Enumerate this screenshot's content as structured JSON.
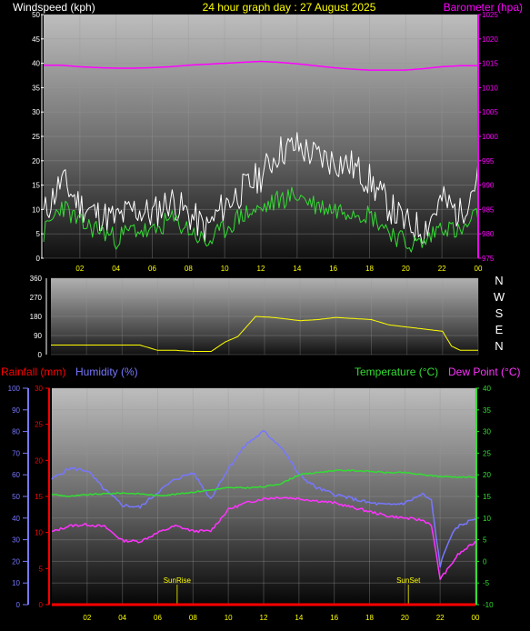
{
  "header": {
    "windspeed_label": "Windspeed (kph)",
    "title": "24 hour graph day : 27 August 2025",
    "barometer_label": "Barometer (hpa)"
  },
  "x_ticks": [
    "02",
    "04",
    "06",
    "08",
    "10",
    "12",
    "14",
    "16",
    "18",
    "20",
    "22",
    "00"
  ],
  "chart_data": [
    {
      "type": "line",
      "panel": "wind-barometer",
      "y_left": {
        "label": "Windspeed (kph)",
        "range": [
          0,
          50
        ],
        "ticks": [
          "0",
          "5",
          "10",
          "15",
          "20",
          "25",
          "30",
          "35",
          "40",
          "45",
          "50"
        ]
      },
      "y_right": {
        "label": "Barometer (hpa)",
        "range": [
          975,
          1025
        ],
        "ticks": [
          "975",
          "980",
          "985",
          "990",
          "995",
          "1000",
          "1005",
          "1010",
          "1015",
          "1020",
          "1025"
        ]
      },
      "x_range": [
        0,
        24
      ],
      "series": [
        {
          "name": "Barometer (hpa)",
          "color": "#ff00ff",
          "axis": "right",
          "x": [
            0,
            1,
            2,
            3,
            4,
            5,
            6,
            7,
            8,
            9,
            10,
            11,
            12,
            13,
            14,
            15,
            16,
            17,
            18,
            19,
            20,
            21,
            22,
            23,
            24
          ],
          "y": [
            1014.6,
            1014.6,
            1014.3,
            1014.1,
            1014.0,
            1014.0,
            1014.1,
            1014.3,
            1014.6,
            1014.8,
            1015.0,
            1015.2,
            1015.4,
            1015.2,
            1014.9,
            1014.5,
            1014.1,
            1013.8,
            1013.6,
            1013.6,
            1013.6,
            1013.9,
            1014.3,
            1014.5,
            1014.5
          ]
        },
        {
          "name": "Gust",
          "color": "#ffffff",
          "axis": "left",
          "x": [
            0,
            1,
            2,
            3,
            4,
            5,
            6,
            7,
            8,
            9,
            10,
            11,
            12,
            13,
            14,
            15,
            16,
            17,
            18,
            19,
            20,
            21,
            22,
            23,
            24
          ],
          "y": [
            9,
            16,
            11,
            9,
            8,
            10,
            9,
            12,
            9,
            6,
            11,
            14,
            17,
            22,
            23,
            21,
            20,
            19,
            16,
            11,
            7,
            6,
            12,
            9,
            17
          ]
        },
        {
          "name": "Average",
          "color": "#33dd33",
          "axis": "left",
          "x": [
            0,
            1,
            2,
            3,
            4,
            5,
            6,
            7,
            8,
            9,
            10,
            11,
            12,
            13,
            14,
            15,
            16,
            17,
            18,
            19,
            20,
            21,
            22,
            23,
            24
          ],
          "y": [
            5,
            11,
            7,
            6,
            4,
            6,
            5,
            8,
            6,
            3,
            6,
            9,
            10,
            12,
            13,
            11,
            10,
            10,
            9,
            6,
            3,
            3,
            7,
            5,
            9
          ]
        }
      ]
    },
    {
      "type": "line",
      "panel": "wind-direction",
      "y_left": {
        "range": [
          0,
          360
        ],
        "ticks": [
          "0",
          "90",
          "180",
          "270",
          "360"
        ]
      },
      "compass": [
        "N",
        "W",
        "S",
        "E",
        "N"
      ],
      "x_range": [
        0,
        24
      ],
      "series": [
        {
          "name": "Direction",
          "color": "#ffff00",
          "x": [
            0,
            2,
            3.5,
            5,
            6,
            7,
            8,
            9,
            9.8,
            10.5,
            11.5,
            12.5,
            13,
            14,
            15,
            16,
            17,
            18,
            19,
            20,
            21,
            22,
            22.5,
            23,
            24
          ],
          "y": [
            45,
            45,
            45,
            45,
            20,
            20,
            15,
            15,
            60,
            85,
            180,
            175,
            170,
            160,
            165,
            175,
            170,
            165,
            140,
            130,
            120,
            110,
            40,
            20,
            20
          ]
        }
      ]
    },
    {
      "type": "line",
      "panel": "rain-humidity-temp",
      "labels": {
        "rainfall": "Rainfall (mm)",
        "humidity": "Humidity (%)",
        "temperature": "Temperature (°C)",
        "dewpoint": "Dew Point (°C)"
      },
      "y_humidity": {
        "range": [
          0,
          100
        ],
        "ticks": [
          "0",
          "10",
          "20",
          "30",
          "40",
          "50",
          "60",
          "70",
          "80",
          "90",
          "100"
        ]
      },
      "y_rain": {
        "range": [
          0,
          30
        ],
        "ticks": [
          "0",
          "5",
          "10",
          "15",
          "20",
          "25",
          "30"
        ]
      },
      "y_temp": {
        "range": [
          -10,
          40
        ],
        "ticks": [
          "-10",
          "-5",
          "0",
          "5",
          "10",
          "15",
          "20",
          "25",
          "30",
          "35",
          "40"
        ]
      },
      "x_range": [
        0,
        24
      ],
      "annotations": [
        {
          "text": "SunRise",
          "x": 7.1
        },
        {
          "text": "SunSet",
          "x": 20.2
        }
      ],
      "series": [
        {
          "name": "Humidity (%)",
          "color": "#7777ff",
          "axis": "humidity",
          "x": [
            0,
            1,
            2,
            3,
            4,
            5,
            6,
            7,
            8,
            9,
            10,
            11,
            12,
            13,
            14,
            15,
            16,
            17,
            18,
            19,
            20,
            21,
            21.5,
            22,
            22.5,
            23,
            24
          ],
          "y": [
            58,
            63,
            62,
            53,
            46,
            45,
            52,
            58,
            61,
            49,
            63,
            74,
            80,
            73,
            60,
            54,
            51,
            49,
            47,
            46,
            47,
            51,
            48,
            18,
            30,
            36,
            40
          ]
        },
        {
          "name": "Temperature (°C)",
          "color": "#33dd33",
          "axis": "temp",
          "x": [
            0,
            1,
            2,
            3,
            4,
            5,
            6,
            7,
            8,
            9,
            10,
            11,
            12,
            13,
            14,
            15,
            16,
            17,
            18,
            19,
            20,
            21,
            22,
            23,
            24
          ],
          "y": [
            15.5,
            15.0,
            15.4,
            15.6,
            15.8,
            15.6,
            15.2,
            15.5,
            16.0,
            16.5,
            17.0,
            17.0,
            17.2,
            18.0,
            20.0,
            20.5,
            21.0,
            21.0,
            20.8,
            20.5,
            20.5,
            20.0,
            19.6,
            19.5,
            19.4
          ]
        },
        {
          "name": "Dew Point (°C)",
          "color": "#ff33ff",
          "axis": "temp",
          "x": [
            0,
            1,
            2,
            3,
            4,
            5,
            6,
            7,
            8,
            9,
            10,
            11,
            12,
            13,
            14,
            15,
            16,
            17,
            18,
            19,
            20,
            21,
            21.5,
            22,
            22.5,
            23,
            24
          ],
          "y": [
            6.8,
            8.2,
            8.5,
            8.0,
            4.8,
            4.6,
            6.6,
            8.2,
            7.0,
            7.0,
            12.0,
            13.5,
            14.5,
            14.8,
            14.5,
            14.0,
            13.5,
            12.5,
            11.5,
            10.5,
            10.0,
            9.5,
            8.5,
            -4.0,
            -1.5,
            1.5,
            4.5
          ]
        },
        {
          "name": "Rainfall (mm)",
          "color": "#ff0000",
          "axis": "rain",
          "x": [
            0,
            24
          ],
          "y": [
            0,
            0
          ]
        }
      ]
    }
  ]
}
